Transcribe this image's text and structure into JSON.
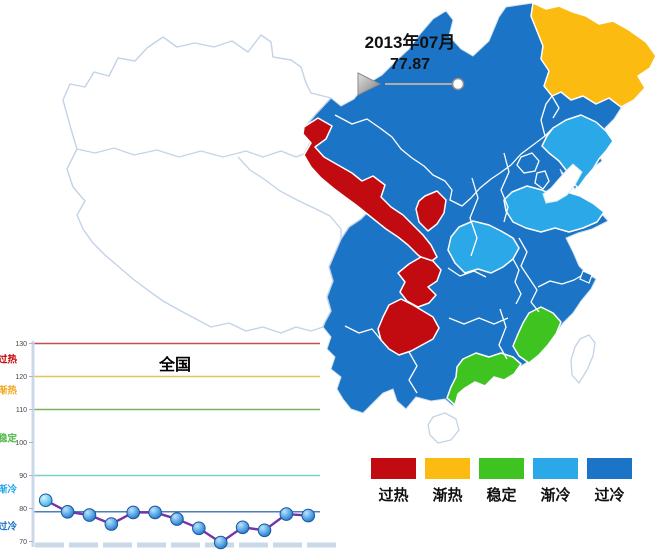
{
  "header": {
    "period": "2013年07月",
    "national_value": "77.87"
  },
  "slider": {
    "progress": 1
  },
  "legend": {
    "items": [
      {
        "label": "过热",
        "color": "#C20B10"
      },
      {
        "label": "渐热",
        "color": "#FBBB10"
      },
      {
        "label": "稳定",
        "color": "#3FC321"
      },
      {
        "label": "渐冷",
        "color": "#2AA8E8"
      },
      {
        "label": "过冷",
        "color": "#1B74C5"
      }
    ]
  },
  "map": {
    "no_data_color": "#FFFFFF",
    "no_data_border_color": "#C3D3E8",
    "province_border_color": "#FFFFFF"
  },
  "chart_data": {
    "map": {
      "type": "choropleth",
      "period": "2013年07月",
      "national_value": 77.87,
      "categories": [
        {
          "label": "过热",
          "color": "#C20B10"
        },
        {
          "label": "渐热",
          "color": "#FBBB10"
        },
        {
          "label": "稳定",
          "color": "#3FC321"
        },
        {
          "label": "渐冷",
          "color": "#2AA8E8"
        },
        {
          "label": "过冷",
          "color": "#1B74C5"
        }
      ],
      "regions": {
        "xinjiang": {
          "category": null
        },
        "xizang": {
          "category": null
        },
        "qinghai": {
          "category": null
        },
        "taiwan": {
          "category": null
        },
        "hainan": {
          "category": null
        },
        "neimenggu": {
          "category": "过冷"
        },
        "heilongjiang": {
          "category": "渐热"
        },
        "jilin": {
          "category": "过冷"
        },
        "liaoning": {
          "category": "渐冷"
        },
        "beijing": {
          "category": "过冷"
        },
        "tianjin": {
          "category": "过冷"
        },
        "hebei": {
          "category": "过冷"
        },
        "shanxi": {
          "category": "过冷"
        },
        "shaanxi": {
          "category": "过冷"
        },
        "shandong": {
          "category": "渐冷"
        },
        "henan": {
          "category": "渐冷"
        },
        "jiangsu": {
          "category": "过冷"
        },
        "anhui": {
          "category": "过冷"
        },
        "shanghai": {
          "category": "过冷"
        },
        "zhejiang": {
          "category": "过冷"
        },
        "hubei": {
          "category": "过冷"
        },
        "hunan": {
          "category": "过冷"
        },
        "jiangxi": {
          "category": "过冷"
        },
        "sichuan": {
          "category": "过冷"
        },
        "chongqing": {
          "category": "过热"
        },
        "guizhou": {
          "category": "过热"
        },
        "yunnan": {
          "category": "过冷"
        },
        "guangxi": {
          "category": "过冷"
        },
        "guangdong": {
          "category": "稳定"
        },
        "fujian": {
          "category": "稳定"
        },
        "gansu": {
          "category": "过热"
        },
        "ningxia": {
          "category": "过热"
        }
      }
    },
    "line": {
      "type": "line",
      "title": "全国",
      "values": [
        82.5,
        79.0,
        78.0,
        75.3,
        78.8,
        78.8,
        76.8,
        74.0,
        69.7,
        74.3,
        73.4,
        78.3,
        77.87
      ],
      "ylim": [
        70,
        130
      ],
      "y_ticks": [
        130,
        120,
        110,
        100,
        90,
        80,
        70
      ],
      "grid": true,
      "legend_position": "none",
      "line_color": "#7634A8",
      "marker_color": "#2474C2",
      "reference_lines": [
        {
          "value": 130,
          "color": "#C0504D"
        },
        {
          "value": 120,
          "color": "#E2C55A"
        },
        {
          "value": 110,
          "color": "#7CB25E"
        },
        {
          "value": 90,
          "color": "#7ECFCB"
        },
        {
          "value": 79,
          "color": "#4C7EBB"
        }
      ],
      "zone_labels": [
        {
          "label": "过热",
          "color": "#C00000",
          "at_value": 125.3
        },
        {
          "label": "渐热",
          "color": "#F2A71C",
          "at_value": 115.9
        },
        {
          "label": "稳定",
          "color": "#4CB748",
          "at_value": 101.4
        },
        {
          "label": "渐冷",
          "color": "#29A9E9",
          "at_value": 85.9
        },
        {
          "label": "过冷",
          "color": "#1B74C5",
          "at_value": 74.7
        }
      ]
    }
  }
}
